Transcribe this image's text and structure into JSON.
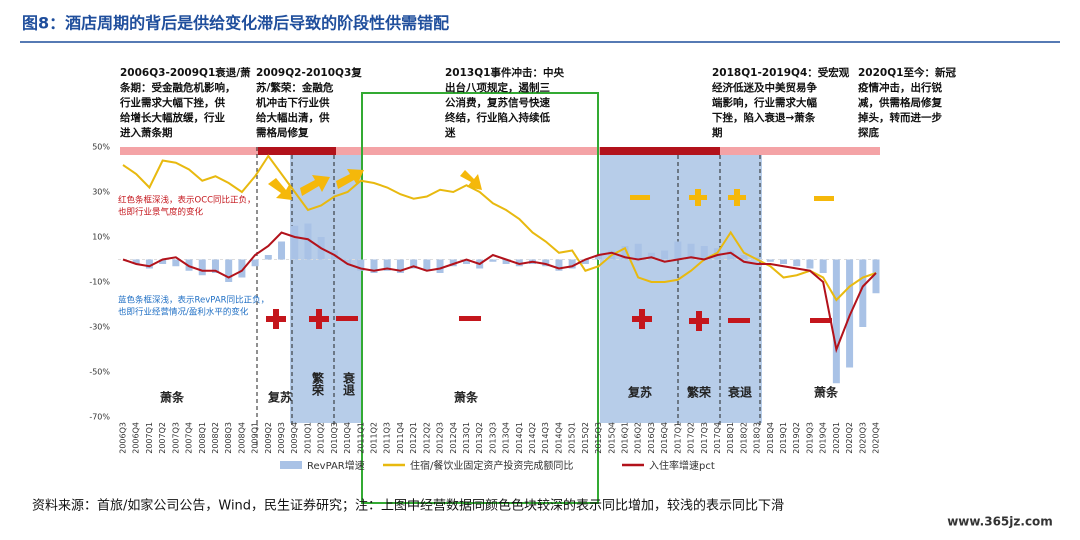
{
  "chart_data": {
    "type": "combo",
    "title": "图8：酒店周期的背后是供给变化滞后导致的阶段性供需错配",
    "annotations": [
      [
        "2006Q3-2009Q1衰退/萧",
        "条期：受金融危机影响，",
        "行业需求大幅下挫，供",
        "给增长大幅放缓，行业",
        "进入萧条期"
      ],
      [
        "2009Q2-2010Q3复",
        "苏/繁荣：金融危",
        "机冲击下行业供",
        "给大幅出清，供",
        "需格局修复"
      ],
      [
        "2013Q1事件冲击：中央",
        "出台八项规定，遏制三",
        "公消费，复苏信号快速",
        "终结，行业陷入持续低",
        "迷"
      ],
      [
        "2018Q1-2019Q4：受宏观",
        "经济低迷及中美贸易争",
        "端影响，行业需求大幅",
        "下挫，陷入衰退→萧条",
        "期"
      ],
      [
        "2020Q1至今：新冠",
        "疫情冲击，出行锐",
        "减，供需格局修复",
        "掉头，转而进一步",
        "探底"
      ]
    ],
    "notes": [
      [
        "红色条框深浅，表示OCC同比正负，",
        "也即行业景气度的变化"
      ],
      [
        "蓝色条框深浅，表示RevPAR同比正负，",
        "也即行业经营情况/盈利水平的变化"
      ]
    ],
    "regions": [
      "萧条",
      "复苏",
      "繁荣",
      "衰退",
      "萧条",
      "复苏",
      "繁荣",
      "衰退",
      "萧条"
    ],
    "source": "资料来源：首旅/如家公司公告，Wind，民生证券研究；注：上图中经营数据同颜色色块较深的表示同比增加，较浅的表示同比下滑",
    "watermark": "www.365jz.com",
    "categories": [
      "2006Q3",
      "2006Q4",
      "2007Q1",
      "2007Q2",
      "2007Q3",
      "2007Q4",
      "2008Q1",
      "2008Q2",
      "2008Q3",
      "2008Q4",
      "2009Q1",
      "2009Q2",
      "2009Q3",
      "2009Q4",
      "2010Q1",
      "2010Q2",
      "2010Q3",
      "2010Q4",
      "2011Q1",
      "2011Q2",
      "2011Q3",
      "2011Q4",
      "2012Q1",
      "2012Q2",
      "2012Q3",
      "2012Q4",
      "2013Q1",
      "2013Q2",
      "2013Q3",
      "2013Q4",
      "2014Q1",
      "2014Q2",
      "2014Q3",
      "2014Q4",
      "2015Q1",
      "2015Q2",
      "2015Q3",
      "2015Q4",
      "2016Q1",
      "2016Q2",
      "2016Q3",
      "2016Q4",
      "2017Q1",
      "2017Q2",
      "2017Q3",
      "2017Q4",
      "2018Q1",
      "2018Q2",
      "2018Q3",
      "2018Q4",
      "2019Q1",
      "2019Q2",
      "2019Q3",
      "2019Q4",
      "2020Q1",
      "2020Q2",
      "2020Q3",
      "2020Q4"
    ],
    "series": [
      {
        "name": "RevPAR增速",
        "color": "#a9c2e6",
        "kind": "bar",
        "values": [
          0,
          -2,
          -4,
          -2,
          -3,
          -5,
          -7,
          -6,
          -10,
          -8,
          -3,
          2,
          8,
          15,
          16,
          10,
          4,
          -2,
          -5,
          -6,
          -5,
          -6,
          -4,
          -5,
          -6,
          -3,
          -2,
          -4,
          -1,
          -2,
          -3,
          -2,
          -3,
          -5,
          -4,
          -2,
          2,
          4,
          6,
          7,
          3,
          4,
          8,
          7,
          6,
          5,
          4,
          2,
          1,
          -1,
          -2,
          -3,
          -4,
          -6,
          -55,
          -48,
          -30,
          -15
        ]
      },
      {
        "name": "住宿/餐饮业固定资产投资完成额同比",
        "color": "#e8b90f",
        "kind": "line",
        "values": [
          42,
          38,
          32,
          44,
          43,
          40,
          35,
          37,
          34,
          30,
          37,
          46,
          38,
          30,
          22,
          24,
          28,
          30,
          35,
          34,
          32,
          29,
          27,
          28,
          31,
          30,
          33,
          30,
          25,
          22,
          18,
          12,
          8,
          3,
          4,
          -5,
          -3,
          2,
          5,
          -8,
          -10,
          -10,
          -9,
          -5,
          0,
          3,
          12,
          3,
          0,
          -3,
          -8,
          -7,
          -5,
          -8,
          -18,
          -12,
          -8,
          -6
        ]
      },
      {
        "name": "入住率增速pct",
        "color": "#b2121b",
        "kind": "line",
        "values": [
          0,
          -2,
          -3,
          0,
          1,
          -3,
          -5,
          -5,
          -8,
          -5,
          2,
          6,
          12,
          10,
          9,
          5,
          2,
          -2,
          -4,
          -5,
          -4,
          -5,
          -3,
          -5,
          -4,
          -2,
          0,
          -2,
          2,
          0,
          -2,
          -1,
          -2,
          -4,
          -3,
          0,
          2,
          3,
          1,
          0,
          1,
          -1,
          0,
          1,
          0,
          2,
          3,
          -1,
          -2,
          -2,
          -3,
          -4,
          -5,
          -10,
          -40,
          -25,
          -12,
          -6
        ]
      }
    ],
    "ylim": [
      -70,
      50
    ],
    "yticks": [
      {
        "value": 50,
        "label": "50%"
      },
      {
        "value": 30,
        "label": "30%"
      },
      {
        "value": 10,
        "label": "10%"
      },
      {
        "value": -10,
        "label": "-10%"
      },
      {
        "value": -30,
        "label": "-30%"
      },
      {
        "value": -50,
        "label": "-50%"
      },
      {
        "value": -70,
        "label": "-70%"
      }
    ]
  }
}
